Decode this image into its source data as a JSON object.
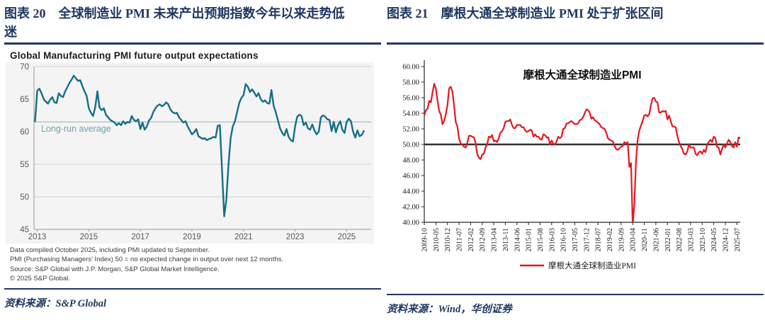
{
  "left_panel": {
    "caption": "图表 20　全球制造业 PMI 未来产出预期指数今年以来走势低迷",
    "source": "资料来源：S&P Global",
    "chart": {
      "title": "Global Manufacturing PMI future output expectations",
      "footnotes": [
        "Data compiled October 2025, including PMI updated to September.",
        "PMI (Purchasing Managers' Index) 50 = no expected change in output over next 12 months.",
        "Source: S&P Global with J.P. Morgan, S&P Global Market Intelligence.",
        "© 2025 S&P Global."
      ]
    }
  },
  "right_panel": {
    "caption": "图表 21　摩根大通全球制造业 PMI 处于扩张区间",
    "source": "资料来源：Wind，华创证券"
  },
  "colors": {
    "navy": "#1f3864",
    "teal_line": "#156e87",
    "avg_line": "#9fb9c0",
    "avg_text": "#76a0ab",
    "red_line": "#e3191f",
    "baseline_black": "#333333",
    "gridline": "#cfcfcf",
    "axis_gray": "#9a9a9a",
    "tick_text_gray": "#595959",
    "plot_bg_left": "#f4f4f4"
  },
  "chart_data": [
    {
      "type": "line",
      "title": "Global Manufacturing PMI future output expectations",
      "xlabel": "",
      "ylabel": "",
      "x_start": 2012.9167,
      "x_step_years": 0.083333,
      "xlim": [
        2012.875,
        2025.95
      ],
      "ylim": [
        45,
        70
      ],
      "ytick_values": [
        70,
        65,
        60,
        55,
        50,
        45
      ],
      "ytick_labels": [
        "70",
        "65",
        "60",
        "55",
        "50",
        "45"
      ],
      "xtick_values": [
        2013,
        2015,
        2017,
        2019,
        2021,
        2023,
        2025
      ],
      "xtick_labels": [
        "2013",
        "2015",
        "2017",
        "2019",
        "2021",
        "2023",
        "2025"
      ],
      "gridline_values": [
        70,
        55,
        50
      ],
      "grid": "partial",
      "legend_position": "none",
      "avg_value": 61.5,
      "avg_label": "Long-run average",
      "line_color": "#156e87",
      "plot_bg": "#f4f4f4",
      "values": [
        61.6,
        66.3,
        66.6,
        65.9,
        65.0,
        64.6,
        64.3,
        64.9,
        65.3,
        64.5,
        64.4,
        65.9,
        65.5,
        65.3,
        66.2,
        66.8,
        67.5,
        68.0,
        68.6,
        68.2,
        67.8,
        67.9,
        67.0,
        66.2,
        65.5,
        63.6,
        62.9,
        62.4,
        63.8,
        66.2,
        63.7,
        63.3,
        63.6,
        62.6,
        62.2,
        61.8,
        61.6,
        61.4,
        61.0,
        61.3,
        61.0,
        61.6,
        61.2,
        61.5,
        61.4,
        62.4,
        61.8,
        61.6,
        61.9,
        60.4,
        61.4,
        60.3,
        60.8,
        61.7,
        62.1,
        63.0,
        63.6,
        64.0,
        64.2,
        63.9,
        64.1,
        64.5,
        64.2,
        63.4,
        63.0,
        62.8,
        62.9,
        62.2,
        61.8,
        61.4,
        61.6,
        60.8,
        60.2,
        59.6,
        59.9,
        60.4,
        59.3,
        59.1,
        58.9,
        59.0,
        58.7,
        58.9,
        59.0,
        59.2,
        59.1,
        60.9,
        61.0,
        54.0,
        47.0,
        49.5,
        55.0,
        59.0,
        60.8,
        61.6,
        63.0,
        64.4,
        65.2,
        65.6,
        67.3,
        66.9,
        66.1,
        66.5,
        66.0,
        65.4,
        65.9,
        65.0,
        64.6,
        64.8,
        64.4,
        64.3,
        66.4,
        64.0,
        63.0,
        61.8,
        60.5,
        59.8,
        59.4,
        60.4,
        59.2,
        58.7,
        58.5,
        60.8,
        62.3,
        62.6,
        62.4,
        61.0,
        61.4,
        60.5,
        60.3,
        61.1,
        60.2,
        59.6,
        60.0,
        62.2,
        62.5,
        62.3,
        61.9,
        61.8,
        60.1,
        61.5,
        59.9,
        61.0,
        61.6,
        60.3,
        59.8,
        61.5,
        62.0,
        61.6,
        60.0,
        59.1,
        60.2,
        59.3,
        59.5,
        60.1
      ]
    },
    {
      "type": "line",
      "title": "摩根大通全球制造业PMI",
      "legend": "摩根大通全球制造业PMI",
      "legend_position": "bottom",
      "start_month": "2009-10",
      "frequency": "monthly",
      "ylim": [
        40,
        60
      ],
      "ytick_labels": [
        "60.00",
        "58.00",
        "56.00",
        "54.00",
        "52.00",
        "50.00",
        "48.00",
        "46.00",
        "44.00",
        "42.00",
        "40.00"
      ],
      "xtick_every_n_months": 7,
      "xtick_labels": [
        "2009-10",
        "2010-05",
        "2010-12",
        "2011-07",
        "2012-02",
        "2012-09",
        "2013-04",
        "2013-11",
        "2014-06",
        "2015-01",
        "2015-08",
        "2016-03",
        "2016-10",
        "2017-05",
        "2017-12",
        "2018-07",
        "2019-02",
        "2019-09",
        "2020-04",
        "2020-11",
        "2021-06",
        "2022-01",
        "2022-08",
        "2023-03",
        "2023-10",
        "2024-05",
        "2024-12",
        "2025-07"
      ],
      "baseline_value": 50,
      "grid": "off",
      "line_color": "#e3191f",
      "values": [
        53.7,
        54.4,
        54.6,
        55.6,
        55.4,
        56.7,
        57.8,
        57.2,
        55.6,
        54.3,
        53.8,
        52.6,
        53.0,
        53.9,
        55.0,
        57.2,
        57.4,
        56.8,
        55.0,
        52.9,
        52.3,
        50.8,
        50.1,
        50.0,
        49.7,
        49.6,
        50.2,
        51.1,
        51.1,
        51.0,
        50.9,
        50.2,
        48.8,
        48.3,
        48.1,
        48.7,
        48.8,
        49.6,
        50.0,
        51.0,
        50.9,
        51.2,
        50.4,
        50.5,
        50.3,
        50.8,
        51.5,
        51.7,
        52.1,
        52.9,
        53.0,
        53.0,
        53.2,
        52.5,
        52.1,
        52.1,
        52.5,
        52.5,
        52.5,
        52.2,
        52.2,
        51.8,
        51.6,
        51.7,
        51.9,
        51.8,
        51.0,
        51.3,
        51.0,
        51.0,
        50.7,
        50.6,
        51.3,
        51.2,
        50.9,
        50.9,
        50.0,
        50.5,
        50.1,
        50.0,
        50.4,
        51.0,
        50.8,
        51.0,
        52.0,
        52.1,
        52.7,
        52.7,
        52.9,
        53.0,
        52.8,
        52.6,
        52.6,
        52.7,
        53.1,
        53.2,
        53.5,
        54.0,
        54.5,
        54.4,
        54.1,
        53.3,
        53.5,
        53.1,
        53.0,
        52.8,
        52.6,
        52.2,
        52.1,
        52.0,
        51.5,
        50.8,
        50.6,
        50.5,
        50.4,
        49.8,
        49.4,
        49.3,
        49.5,
        49.7,
        49.8,
        50.3,
        50.1,
        50.3,
        47.1,
        47.6,
        39.6,
        42.4,
        47.9,
        50.6,
        51.8,
        52.4,
        53.0,
        53.7,
        53.8,
        53.6,
        53.9,
        55.0,
        55.9,
        56.0,
        55.5,
        55.4,
        54.1,
        54.1,
        54.3,
        54.2,
        54.3,
        53.2,
        53.7,
        53.0,
        52.3,
        52.3,
        52.2,
        51.1,
        50.3,
        49.8,
        49.4,
        48.8,
        48.7,
        49.1,
        50.0,
        49.6,
        49.6,
        49.6,
        48.8,
        48.6,
        49.0,
        49.1,
        48.8,
        49.3,
        49.0,
        50.0,
        50.3,
        50.6,
        50.3,
        51.0,
        50.8,
        49.7,
        49.6,
        48.7,
        49.4,
        50.0,
        49.6,
        50.1,
        50.6,
        50.3,
        49.8,
        49.6,
        50.3,
        49.7,
        50.9,
        50.8
      ]
    }
  ]
}
